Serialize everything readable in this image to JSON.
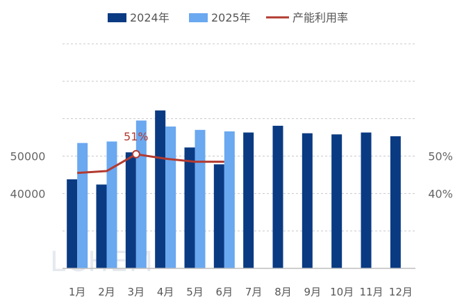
{
  "chart_data": {
    "type": "bar",
    "categories": [
      "1月",
      "2月",
      "3月",
      "4月",
      "5月",
      "6月",
      "7月",
      "8月",
      "9月",
      "10月",
      "11月",
      "12月"
    ],
    "series": [
      {
        "name": "2024年",
        "type": "bar",
        "color": "#0a3a82",
        "values": [
          43800,
          42400,
          51000,
          62200,
          52300,
          47800,
          56300,
          58100,
          56100,
          55800,
          56300,
          55300
        ]
      },
      {
        "name": "2025年",
        "type": "bar",
        "color": "#6aa8f0",
        "values": [
          53500,
          53900,
          59500,
          57900,
          57000,
          56600,
          null,
          null,
          null,
          null,
          null,
          null
        ]
      },
      {
        "name": "产能利用率",
        "type": "line",
        "color": "#b23a30",
        "values": [
          45.5,
          46.0,
          50.5,
          49.3,
          48.5,
          48.5,
          null,
          null,
          null,
          null,
          null,
          null
        ]
      }
    ],
    "left_ticks": [
      "40000",
      "50000"
    ],
    "right_ticks": [
      "40%",
      "50%"
    ],
    "ylim_left": [
      20000,
      80000
    ],
    "ylim_right": [
      20,
      80
    ],
    "annotation": {
      "text": "51%",
      "index": 2
    },
    "legend_position": "top",
    "grid": true,
    "watermark": "LCHEM"
  }
}
